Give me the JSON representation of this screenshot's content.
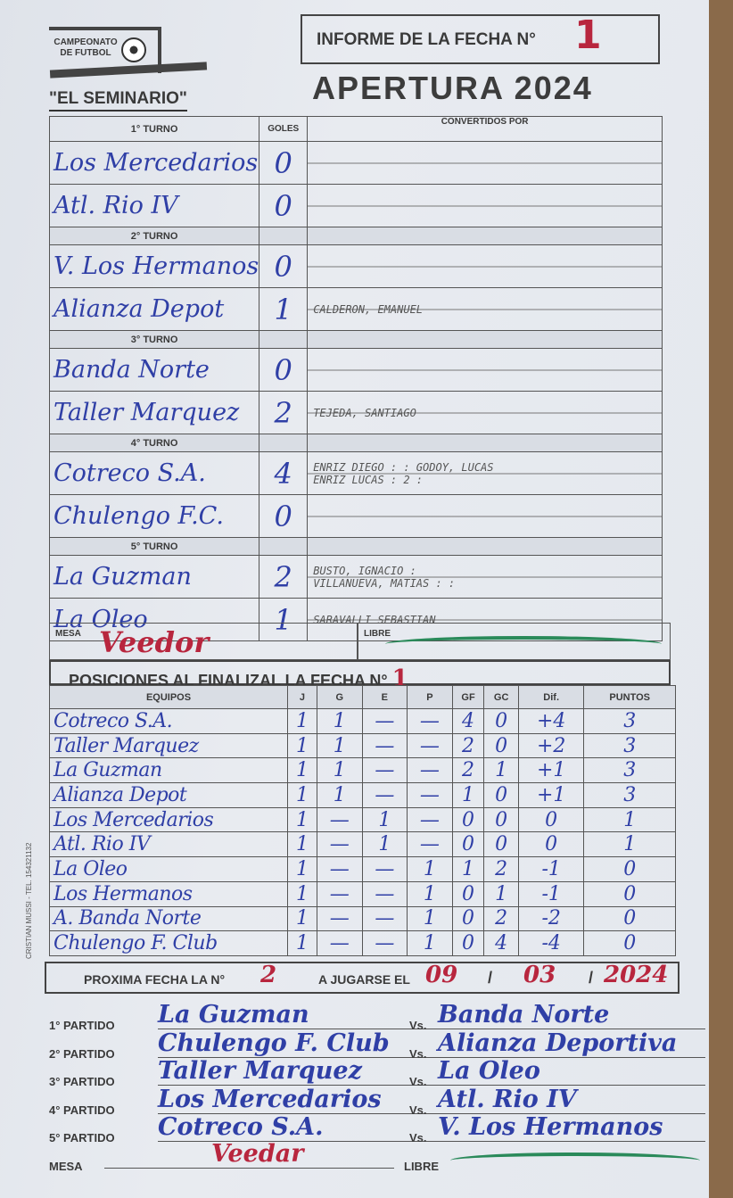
{
  "header": {
    "logo_line1": "CAMPEONATO",
    "logo_line2": "DE FUTBOL",
    "league": "\"EL SEMINARIO\"",
    "informe_label": "INFORME DE LA FECHA N°",
    "fecha_number": "1",
    "tournament": "APERTURA 2024"
  },
  "results": {
    "headers": {
      "goles": "GOLES",
      "convertidos": "CONVERTIDOS POR"
    },
    "turnos": [
      {
        "label": "1° TURNO",
        "home": {
          "team": "Los Mercedarios",
          "goals": "0",
          "scorers": ""
        },
        "away": {
          "team": "Atl. Rio IV",
          "goals": "0",
          "scorers": ""
        }
      },
      {
        "label": "2° TURNO",
        "home": {
          "team": "V. Los Hermanos",
          "goals": "0",
          "scorers": ""
        },
        "away": {
          "team": "Alianza Depot",
          "goals": "1",
          "scorers": "CALDERON, EMANUEL"
        }
      },
      {
        "label": "3° TURNO",
        "home": {
          "team": "Banda Norte",
          "goals": "0",
          "scorers": ""
        },
        "away": {
          "team": "Taller Marquez",
          "goals": "2",
          "scorers": "TEJEDA, SANTIAGO"
        }
      },
      {
        "label": "4° TURNO",
        "home": {
          "team": "Cotreco S.A.",
          "goals": "4",
          "scorers": "ENRIZ DIEGO : : GODOY, LUCAS",
          "scorers2": "ENRIZ LUCAS : 2 :"
        },
        "away": {
          "team": "Chulengo F.C.",
          "goals": "0",
          "scorers": ""
        }
      },
      {
        "label": "5° TURNO",
        "home": {
          "team": "La Guzman",
          "goals": "2",
          "scorers": "BUSTO, IGNACIO :",
          "scorers2": "VILLANUEVA, MATIAS : :"
        },
        "away": {
          "team": "La Oleo",
          "goals": "1",
          "scorers": "SARAVALLI SEBASTIAN"
        }
      }
    ],
    "mesa_label": "MESA",
    "mesa_value": "Veedor",
    "libre_label": "LIBRE"
  },
  "standings": {
    "title": "POSICIONES AL FINALIZAL LA FECHA N°",
    "fecha_number": "1",
    "columns": [
      "EQUIPOS",
      "J",
      "G",
      "E",
      "P",
      "GF",
      "GC",
      "Dif.",
      "PUNTOS"
    ],
    "rows": [
      [
        "Cotreco S.A.",
        "1",
        "1",
        "—",
        "—",
        "4",
        "0",
        "+4",
        "3"
      ],
      [
        "Taller Marquez",
        "1",
        "1",
        "—",
        "—",
        "2",
        "0",
        "+2",
        "3"
      ],
      [
        "La Guzman",
        "1",
        "1",
        "—",
        "—",
        "2",
        "1",
        "+1",
        "3"
      ],
      [
        "Alianza Depot",
        "1",
        "1",
        "—",
        "—",
        "1",
        "0",
        "+1",
        "3"
      ],
      [
        "Los Mercedarios",
        "1",
        "—",
        "1",
        "—",
        "0",
        "0",
        "0",
        "1"
      ],
      [
        "Atl. Rio IV",
        "1",
        "—",
        "1",
        "—",
        "0",
        "0",
        "0",
        "1"
      ],
      [
        "La Oleo",
        "1",
        "—",
        "—",
        "1",
        "1",
        "2",
        "-1",
        "0"
      ],
      [
        "Los Hermanos",
        "1",
        "—",
        "—",
        "1",
        "0",
        "1",
        "-1",
        "0"
      ],
      [
        "A. Banda Norte",
        "1",
        "—",
        "—",
        "1",
        "0",
        "2",
        "-2",
        "0"
      ],
      [
        "Chulengo F. Club",
        "1",
        "—",
        "—",
        "1",
        "0",
        "4",
        "-4",
        "0"
      ]
    ]
  },
  "next": {
    "label": "PROXIMA FECHA LA N°",
    "number": "2",
    "date_label": "A JUGARSE EL",
    "day": "09",
    "month": "03",
    "year": "2024",
    "vs": "Vs.",
    "matches": [
      {
        "label": "1° PARTIDO",
        "home": "La Guzman",
        "away": "Banda Norte"
      },
      {
        "label": "2° PARTIDO",
        "home": "Chulengo F. Club",
        "away": "Alianza Deportiva"
      },
      {
        "label": "3° PARTIDO",
        "home": "Taller Marquez",
        "away": "La Oleo"
      },
      {
        "label": "4° PARTIDO",
        "home": "Los Mercedarios",
        "away": "Atl. Rio IV"
      },
      {
        "label": "5° PARTIDO",
        "home": "Cotreco S.A.",
        "away": "V. Los Hermanos"
      }
    ],
    "mesa_label": "MESA",
    "mesa_value": "Veedar",
    "libre_label": "LIBRE"
  },
  "footer": {
    "printer": "CRISTIAN MUSSI - TEL. 154321132"
  },
  "colors": {
    "ink_blue": "#2f3fa6",
    "ink_red": "#b8263e",
    "ink_green": "#2a8a5a"
  }
}
